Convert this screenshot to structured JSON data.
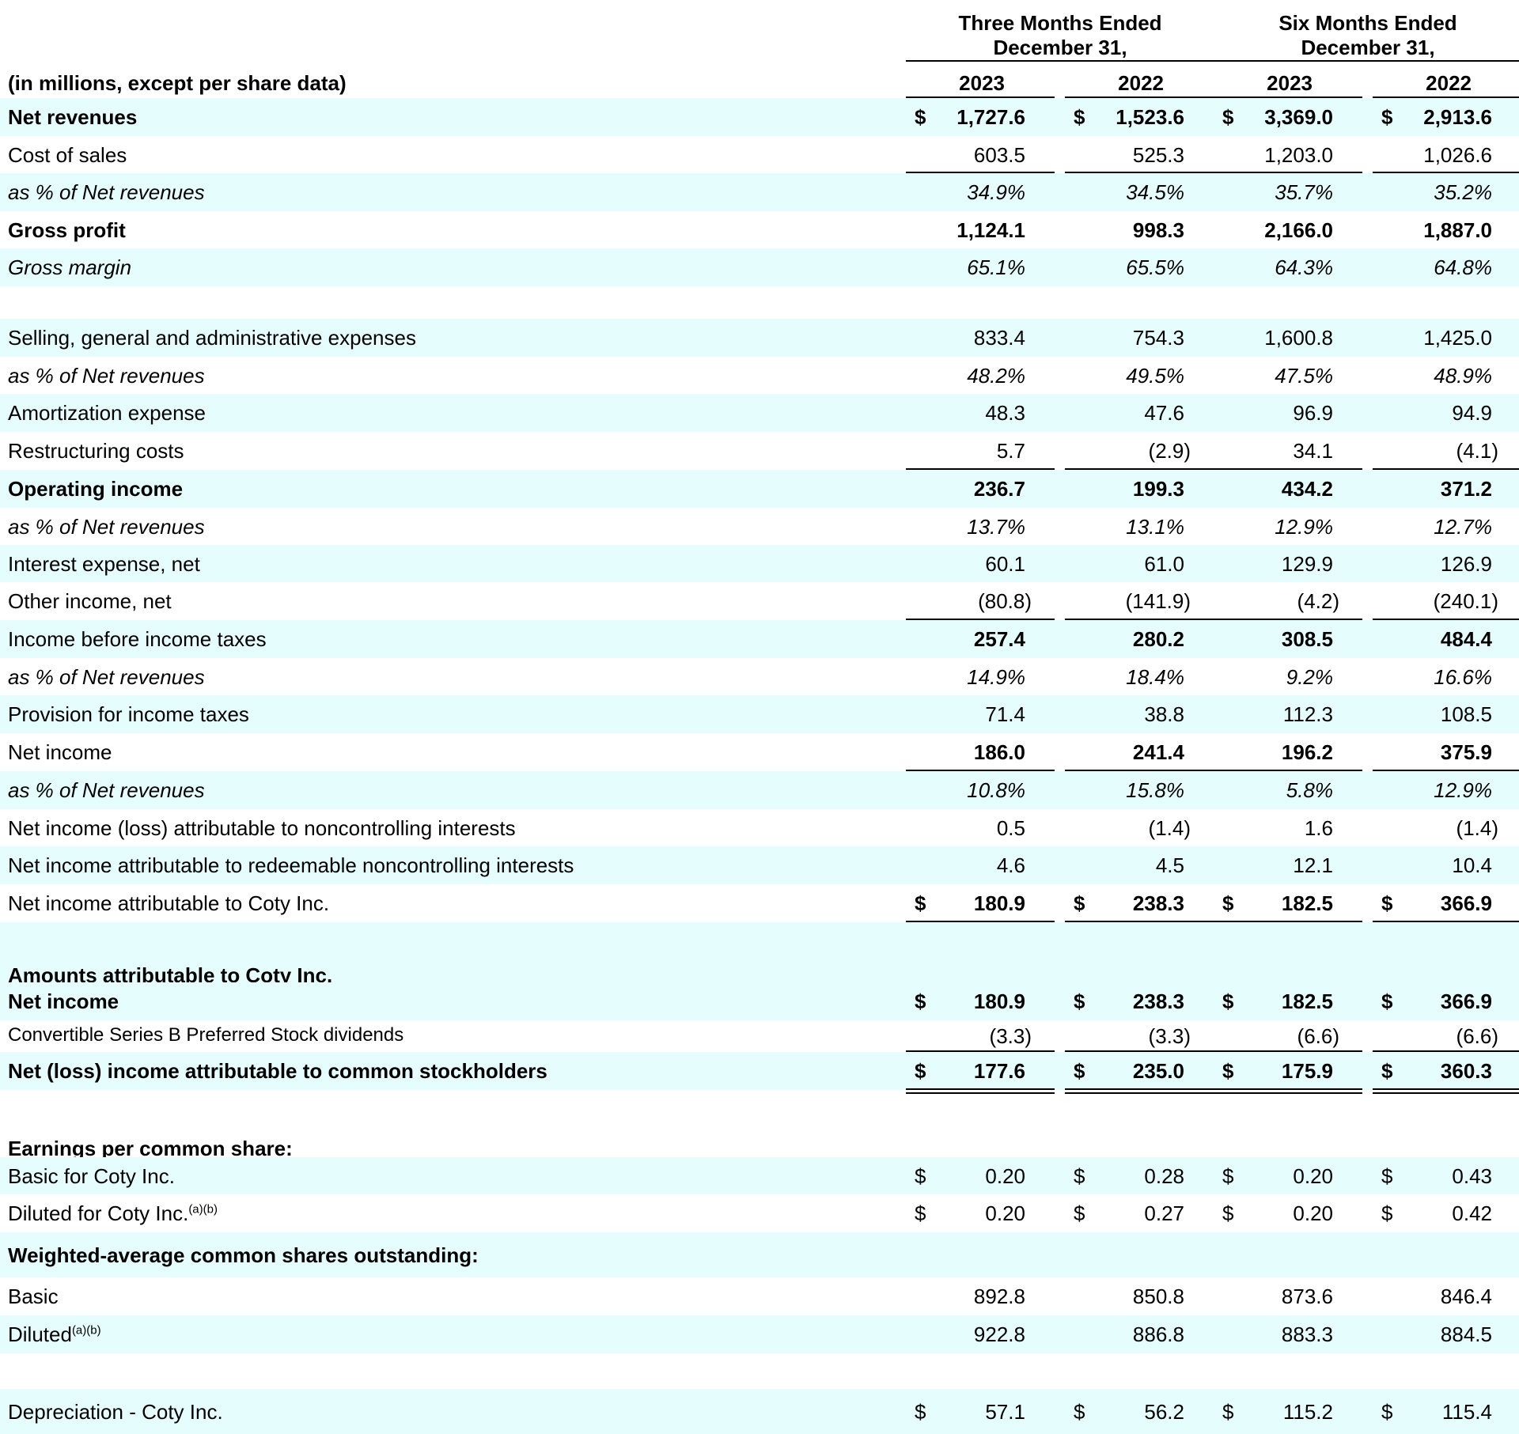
{
  "header": {
    "group1": "Three Months Ended\nDecember 31,",
    "group2": "Six Months Ended\nDecember 31,",
    "units": "(in millions, except per share data)",
    "years": [
      "2023",
      "2022",
      "2023",
      "2022"
    ]
  },
  "rows": [
    {
      "label": "Net revenues",
      "style": "bold",
      "dollar": true,
      "values": [
        "1,727.6",
        "1,523.6",
        "3,369.0",
        "2,913.6"
      ]
    },
    {
      "label": "Cost of sales",
      "values": [
        "603.5",
        "525.3",
        "1,203.0",
        "1,026.6"
      ]
    },
    {
      "label": "as % of Net revenues",
      "style": "italic",
      "values": [
        "34.9%",
        "34.5%",
        "35.7%",
        "35.2%"
      ]
    },
    {
      "label": "Gross profit",
      "style": "bold",
      "values": [
        "1,124.1",
        "998.3",
        "2,166.0",
        "1,887.0"
      ]
    },
    {
      "label": "Gross margin",
      "style": "italic",
      "values": [
        "65.1%",
        "65.5%",
        "64.3%",
        "64.8%"
      ]
    },
    {
      "label": "",
      "values": []
    },
    {
      "label": "Selling, general and administrative expenses",
      "values": [
        "833.4",
        "754.3",
        "1,600.8",
        "1,425.0"
      ]
    },
    {
      "label": "as % of Net revenues",
      "style": "italic",
      "values": [
        "48.2%",
        "49.5%",
        "47.5%",
        "48.9%"
      ]
    },
    {
      "label": "Amortization expense",
      "values": [
        "48.3",
        "47.6",
        "96.9",
        "94.9"
      ]
    },
    {
      "label": "Restructuring costs",
      "values": [
        "5.7",
        "(2.9)",
        "34.1",
        "(4.1)"
      ]
    },
    {
      "label": "Operating income",
      "style": "bold",
      "values": [
        "236.7",
        "199.3",
        "434.2",
        "371.2"
      ]
    },
    {
      "label": "as % of Net revenues",
      "style": "italic",
      "values": [
        "13.7%",
        "13.1%",
        "12.9%",
        "12.7%"
      ]
    },
    {
      "label": "Interest expense, net",
      "values": [
        "60.1",
        "61.0",
        "129.9",
        "126.9"
      ]
    },
    {
      "label": "Other income, net",
      "values": [
        "(80.8)",
        "(141.9)",
        "(4.2)",
        "(240.1)"
      ]
    },
    {
      "label": "Income before income taxes",
      "values": [
        "257.4",
        "280.2",
        "308.5",
        "484.4"
      ]
    },
    {
      "label": "as % of Net revenues",
      "style": "italic",
      "values": [
        "14.9%",
        "18.4%",
        "9.2%",
        "16.6%"
      ]
    },
    {
      "label": "Provision for income taxes",
      "values": [
        "71.4",
        "38.8",
        "112.3",
        "108.5"
      ]
    },
    {
      "label": "Net income",
      "values": [
        "186.0",
        "241.4",
        "196.2",
        "375.9"
      ]
    },
    {
      "label": "as % of Net revenues",
      "style": "italic",
      "values": [
        "10.8%",
        "15.8%",
        "5.8%",
        "12.9%"
      ]
    },
    {
      "label": "Net income (loss) attributable to noncontrolling interests",
      "values": [
        "0.5",
        "(1.4)",
        "1.6",
        "(1.4)"
      ]
    },
    {
      "label": "Net income attributable to redeemable noncontrolling interests",
      "values": [
        "4.6",
        "4.5",
        "12.1",
        "10.4"
      ]
    },
    {
      "label": "Net income attributable to Coty Inc.",
      "dollar": true,
      "values": [
        "180.9",
        "238.3",
        "182.5",
        "366.9"
      ]
    },
    {
      "label": "",
      "values": []
    },
    {
      "label": "Amounts attributable to Coty Inc.",
      "style": "bold",
      "values": []
    },
    {
      "label": "Net income",
      "style": "bold",
      "dollar": true,
      "values": [
        "180.9",
        "238.3",
        "182.5",
        "366.9"
      ]
    },
    {
      "label": "Convertible Series B Preferred Stock dividends",
      "values": [
        "(3.3)",
        "(3.3)",
        "(6.6)",
        "(6.6)"
      ]
    },
    {
      "label": "Net (loss) income attributable to common stockholders",
      "style": "bold",
      "dollar": true,
      "values": [
        "177.6",
        "235.0",
        "175.9",
        "360.3"
      ]
    },
    {
      "label": "",
      "values": []
    },
    {
      "label": "Earnings per common share:",
      "style": "bold",
      "values": []
    },
    {
      "label": "Basic for Coty Inc.",
      "dollar": true,
      "values": [
        "0.20",
        "0.28",
        "0.20",
        "0.43"
      ]
    },
    {
      "label": "Diluted for Coty Inc.",
      "sup": "(a)(b)",
      "dollar": true,
      "values": [
        "0.20",
        "0.27",
        "0.20",
        "0.42"
      ]
    },
    {
      "label": "Weighted-average common shares outstanding:",
      "style": "bold",
      "values": []
    },
    {
      "label": "Basic",
      "values": [
        "892.8",
        "850.8",
        "873.6",
        "846.4"
      ]
    },
    {
      "label": "Diluted",
      "sup": "(a)(b)",
      "values": [
        "922.8",
        "886.8",
        "883.3",
        "884.5"
      ]
    },
    {
      "label": "",
      "values": []
    },
    {
      "label": "Depreciation - Coty Inc.",
      "dollar": true,
      "values": [
        "57.1",
        "56.2",
        "115.2",
        "115.4"
      ]
    }
  ]
}
